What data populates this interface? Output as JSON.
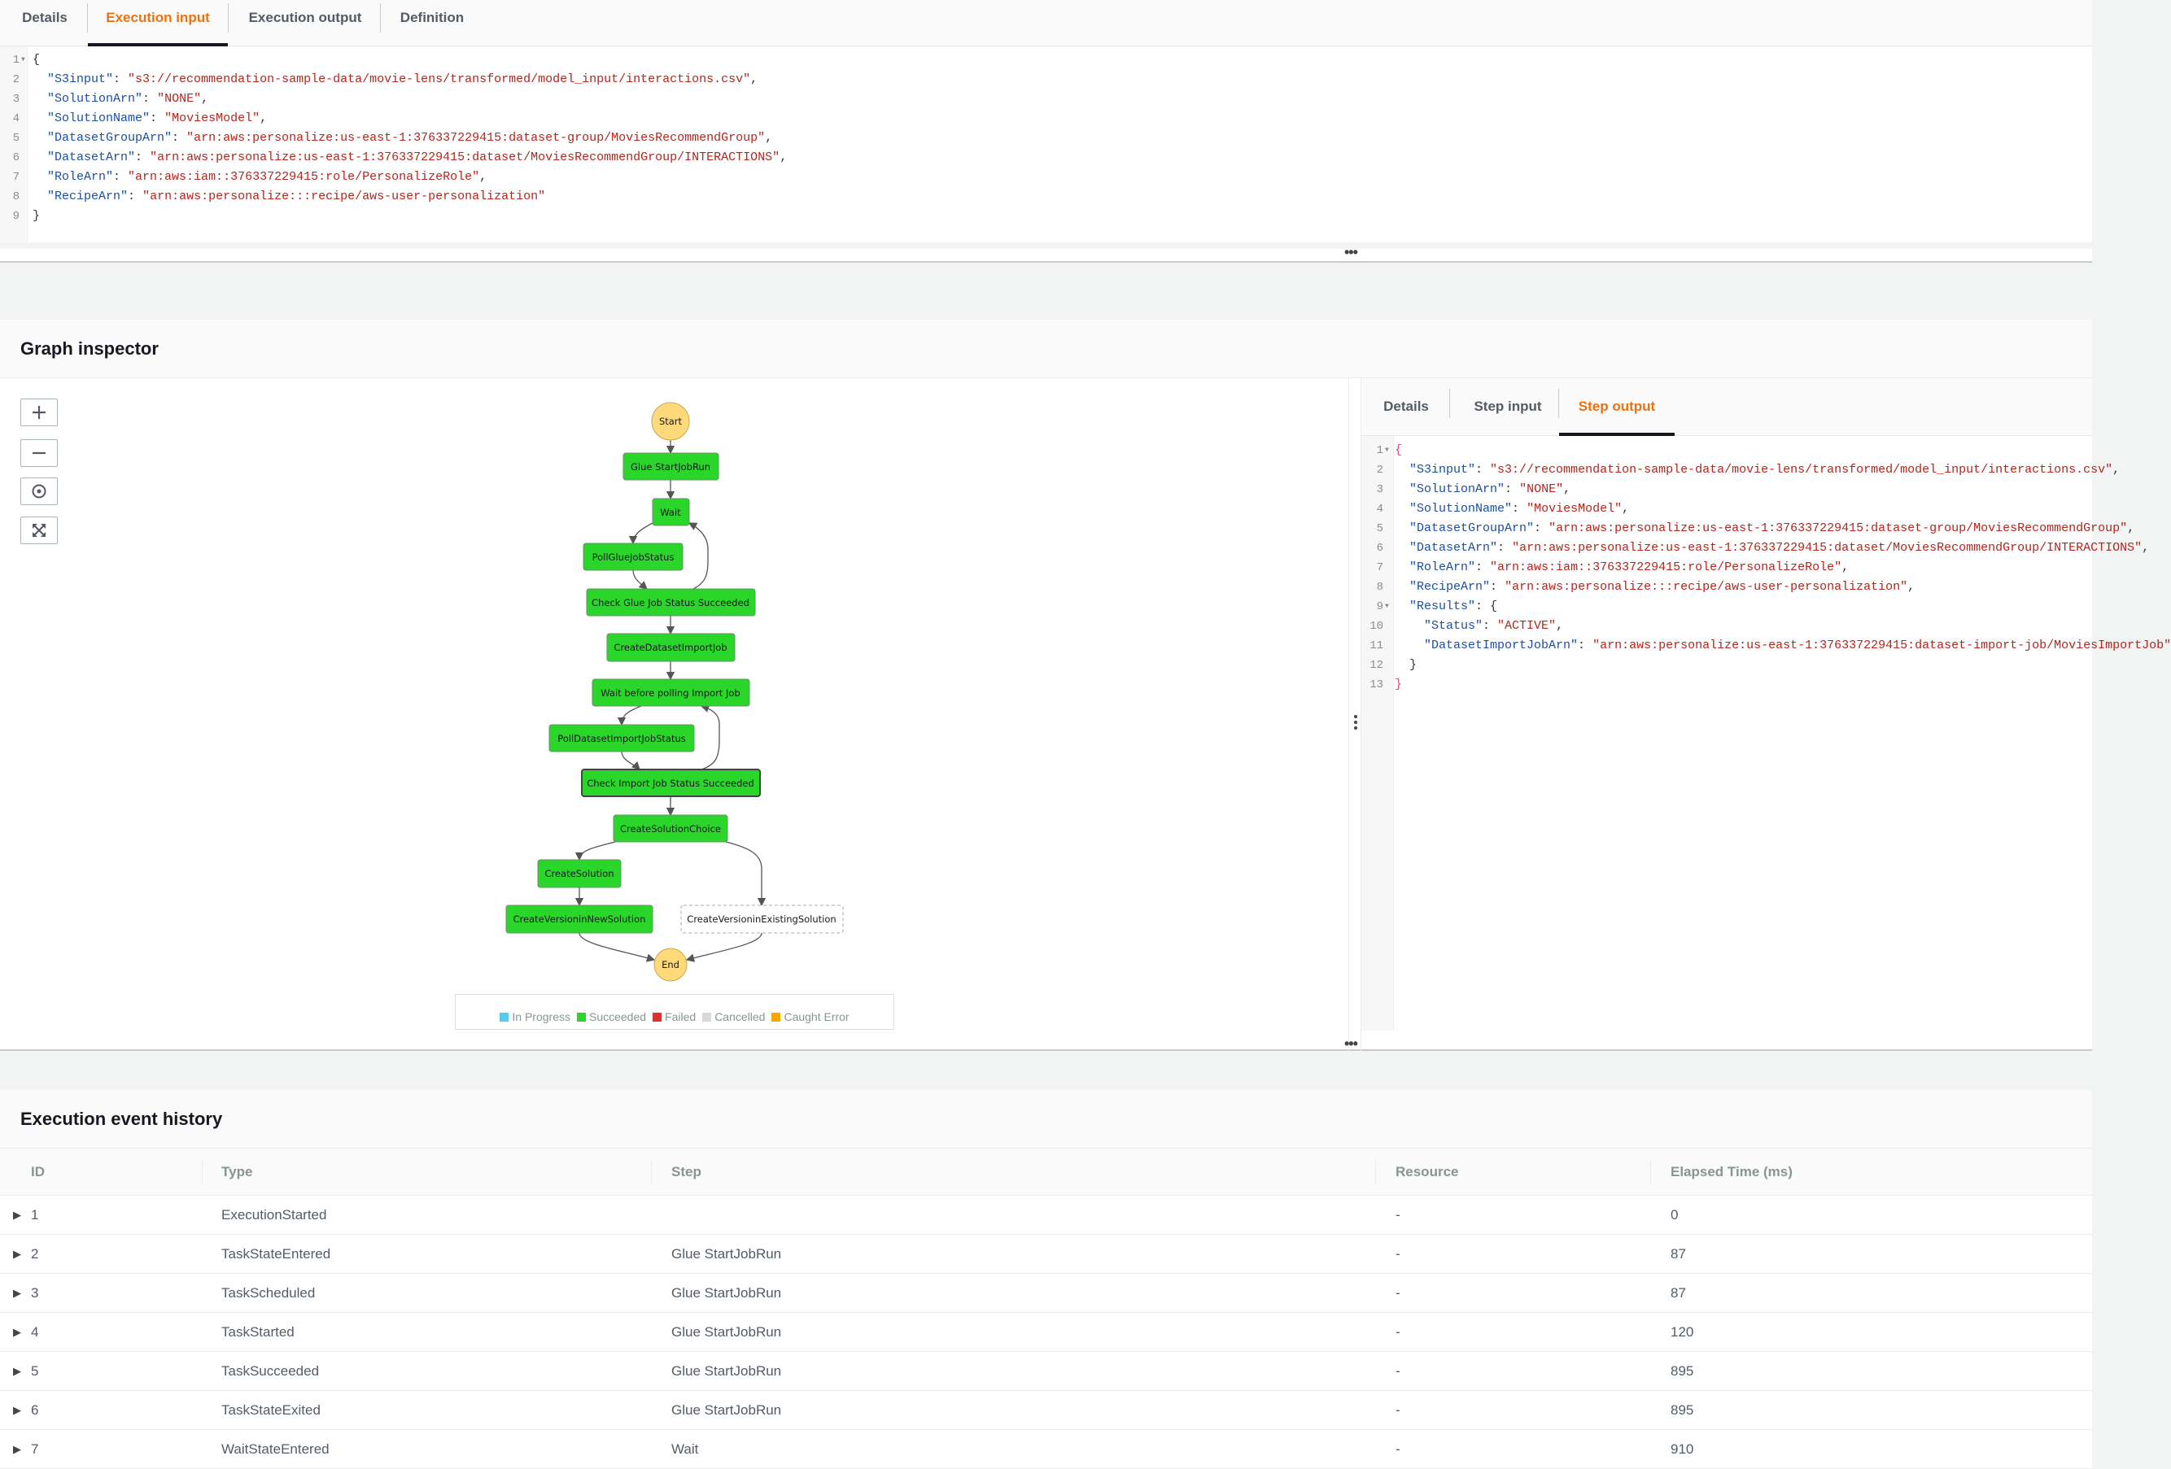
{
  "top_tabs": [
    "Details",
    "Execution input",
    "Execution output",
    "Definition"
  ],
  "active_top_tab": "Execution input",
  "execution_input_lines": [
    {
      "n": "1",
      "fold": true,
      "parts": [
        [
          "br",
          "{"
        ]
      ]
    },
    {
      "n": "2",
      "parts": [
        [
          "p",
          "  "
        ],
        [
          "k",
          "\"S3input\""
        ],
        [
          "p",
          ": "
        ],
        [
          "s",
          "\"s3://recommendation-sample-data/movie-lens/transformed/model_input/interactions.csv\""
        ],
        [
          "p",
          ","
        ]
      ]
    },
    {
      "n": "3",
      "parts": [
        [
          "p",
          "  "
        ],
        [
          "k",
          "\"SolutionArn\""
        ],
        [
          "p",
          ": "
        ],
        [
          "s",
          "\"NONE\""
        ],
        [
          "p",
          ","
        ]
      ]
    },
    {
      "n": "4",
      "parts": [
        [
          "p",
          "  "
        ],
        [
          "k",
          "\"SolutionName\""
        ],
        [
          "p",
          ": "
        ],
        [
          "s",
          "\"MoviesModel\""
        ],
        [
          "p",
          ","
        ]
      ]
    },
    {
      "n": "5",
      "parts": [
        [
          "p",
          "  "
        ],
        [
          "k",
          "\"DatasetGroupArn\""
        ],
        [
          "p",
          ": "
        ],
        [
          "s",
          "\"arn:aws:personalize:us-east-1:376337229415:dataset-group/MoviesRecommendGroup\""
        ],
        [
          "p",
          ","
        ]
      ]
    },
    {
      "n": "6",
      "parts": [
        [
          "p",
          "  "
        ],
        [
          "k",
          "\"DatasetArn\""
        ],
        [
          "p",
          ": "
        ],
        [
          "s",
          "\"arn:aws:personalize:us-east-1:376337229415:dataset/MoviesRecommendGroup/INTERACTIONS\""
        ],
        [
          "p",
          ","
        ]
      ]
    },
    {
      "n": "7",
      "parts": [
        [
          "p",
          "  "
        ],
        [
          "k",
          "\"RoleArn\""
        ],
        [
          "p",
          ": "
        ],
        [
          "s",
          "\"arn:aws:iam::376337229415:role/PersonalizeRole\""
        ],
        [
          "p",
          ","
        ]
      ]
    },
    {
      "n": "8",
      "parts": [
        [
          "p",
          "  "
        ],
        [
          "k",
          "\"RecipeArn\""
        ],
        [
          "p",
          ": "
        ],
        [
          "s",
          "\"arn:aws:personalize:::recipe/aws-user-personalization\""
        ]
      ]
    },
    {
      "n": "9",
      "parts": [
        [
          "br",
          "}"
        ]
      ]
    }
  ],
  "resize_handle_label": "•••",
  "graph_inspector": {
    "title": "Graph inspector",
    "zoom_controls": [
      "zoom-in",
      "zoom-out",
      "center",
      "fit"
    ],
    "nodes": {
      "start": "Start",
      "glue_start": "Glue StartJobRun",
      "wait": "Wait",
      "poll_glue": "PollGlueJobStatus",
      "check_glue": "Check Glue Job Status Succeeded",
      "create_import": "CreateDatasetImportJob",
      "wait_before": "Wait before polling Import Job",
      "poll_import": "PollDatasetImportJobStatus",
      "check_import": "Check Import Job Status Succeeded",
      "choice": "CreateSolutionChoice",
      "create_solution": "CreateSolution",
      "version_new": "CreateVersioninNewSolution",
      "version_existing": "CreateVersioninExistingSolution",
      "end": "End"
    },
    "legend": [
      {
        "label": "In Progress",
        "color": "#56c9ee"
      },
      {
        "label": "Succeeded",
        "color": "#2bd62b"
      },
      {
        "label": "Failed",
        "color": "#dd3130"
      },
      {
        "label": "Cancelled",
        "color": "#d9d9d9"
      },
      {
        "label": "Caught Error",
        "color": "#ffa500"
      }
    ],
    "side_tabs": [
      "Details",
      "Step input",
      "Step output"
    ],
    "active_side_tab": "Step output",
    "step_output_lines": [
      {
        "n": "1",
        "fold": true,
        "parts": [
          [
            "brh",
            "{"
          ]
        ]
      },
      {
        "n": "2",
        "parts": [
          [
            "p",
            "  "
          ],
          [
            "k",
            "\"S3input\""
          ],
          [
            "p",
            ": "
          ],
          [
            "s",
            "\"s3://recommendation-sample-data/movie-lens/transformed/model_input/interactions.csv\""
          ],
          [
            "p",
            ","
          ]
        ]
      },
      {
        "n": "3",
        "parts": [
          [
            "p",
            "  "
          ],
          [
            "k",
            "\"SolutionArn\""
          ],
          [
            "p",
            ": "
          ],
          [
            "s",
            "\"NONE\""
          ],
          [
            "p",
            ","
          ]
        ]
      },
      {
        "n": "4",
        "parts": [
          [
            "p",
            "  "
          ],
          [
            "k",
            "\"SolutionName\""
          ],
          [
            "p",
            ": "
          ],
          [
            "s",
            "\"MoviesModel\""
          ],
          [
            "p",
            ","
          ]
        ]
      },
      {
        "n": "5",
        "parts": [
          [
            "p",
            "  "
          ],
          [
            "k",
            "\"DatasetGroupArn\""
          ],
          [
            "p",
            ": "
          ],
          [
            "s",
            "\"arn:aws:personalize:us-east-1:376337229415:dataset-group/MoviesRecommendGroup\""
          ],
          [
            "p",
            ","
          ]
        ]
      },
      {
        "n": "6",
        "parts": [
          [
            "p",
            "  "
          ],
          [
            "k",
            "\"DatasetArn\""
          ],
          [
            "p",
            ": "
          ],
          [
            "s",
            "\"arn:aws:personalize:us-east-1:376337229415:dataset/MoviesRecommendGroup/INTERACTIONS\""
          ],
          [
            "p",
            ","
          ]
        ]
      },
      {
        "n": "7",
        "parts": [
          [
            "p",
            "  "
          ],
          [
            "k",
            "\"RoleArn\""
          ],
          [
            "p",
            ": "
          ],
          [
            "s",
            "\"arn:aws:iam::376337229415:role/PersonalizeRole\""
          ],
          [
            "p",
            ","
          ]
        ]
      },
      {
        "n": "8",
        "parts": [
          [
            "p",
            "  "
          ],
          [
            "k",
            "\"RecipeArn\""
          ],
          [
            "p",
            ": "
          ],
          [
            "s",
            "\"arn:aws:personalize:::recipe/aws-user-personalization\""
          ],
          [
            "p",
            ","
          ]
        ]
      },
      {
        "n": "9",
        "fold": true,
        "parts": [
          [
            "p",
            "  "
          ],
          [
            "k",
            "\"Results\""
          ],
          [
            "p",
            ": {"
          ]
        ]
      },
      {
        "n": "10",
        "parts": [
          [
            "p",
            "    "
          ],
          [
            "k",
            "\"Status\""
          ],
          [
            "p",
            ": "
          ],
          [
            "s",
            "\"ACTIVE\""
          ],
          [
            "p",
            ","
          ]
        ]
      },
      {
        "n": "11",
        "parts": [
          [
            "p",
            "    "
          ],
          [
            "k",
            "\"DatasetImportJobArn\""
          ],
          [
            "p",
            ": "
          ],
          [
            "s",
            "\"arn:aws:personalize:us-east-1:376337229415:dataset-import-job/MoviesImportJob\""
          ]
        ]
      },
      {
        "n": "12",
        "parts": [
          [
            "p",
            "  }"
          ]
        ]
      },
      {
        "n": "13",
        "parts": [
          [
            "brh",
            "}"
          ]
        ]
      }
    ]
  },
  "event_history": {
    "title": "Execution event history",
    "columns": [
      "ID",
      "Type",
      "Step",
      "Resource",
      "Elapsed Time (ms)"
    ],
    "rows": [
      [
        "1",
        "ExecutionStarted",
        "",
        "-",
        "0"
      ],
      [
        "2",
        "TaskStateEntered",
        "Glue StartJobRun",
        "-",
        "87"
      ],
      [
        "3",
        "TaskScheduled",
        "Glue StartJobRun",
        "-",
        "87"
      ],
      [
        "4",
        "TaskStarted",
        "Glue StartJobRun",
        "-",
        "120"
      ],
      [
        "5",
        "TaskSucceeded",
        "Glue StartJobRun",
        "-",
        "895"
      ],
      [
        "6",
        "TaskStateExited",
        "Glue StartJobRun",
        "-",
        "895"
      ],
      [
        "7",
        "WaitStateEntered",
        "Wait",
        "-",
        "910"
      ]
    ]
  }
}
